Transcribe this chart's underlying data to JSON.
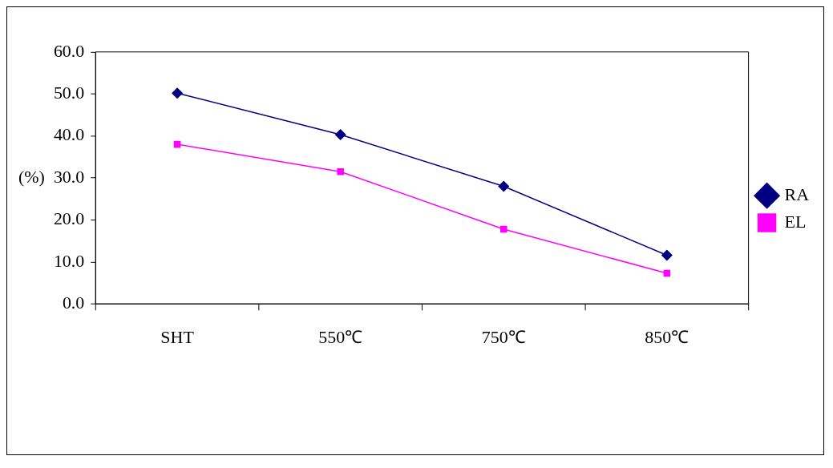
{
  "chart_data": {
    "type": "line",
    "ylabel": "(%)",
    "categories": [
      "SHT",
      "550℃",
      "750℃",
      "850℃"
    ],
    "series": [
      {
        "name": "RA",
        "color": "#000080",
        "values": [
          50.2,
          40.3,
          28.0,
          11.6
        ],
        "marker": "diamond"
      },
      {
        "name": "EL",
        "color": "#ff00ff",
        "values": [
          38.0,
          31.5,
          17.8,
          7.3
        ],
        "marker": "square"
      }
    ],
    "ylim": [
      0,
      60
    ],
    "yticks": [
      {
        "value": 0,
        "label": "0.0"
      },
      {
        "value": 10,
        "label": "10.0"
      },
      {
        "value": 20,
        "label": "20.0"
      },
      {
        "value": 30,
        "label": "30.0"
      },
      {
        "value": 40,
        "label": "40.0"
      },
      {
        "value": 50,
        "label": "50.0"
      },
      {
        "value": 60,
        "label": "60.0"
      }
    ],
    "grid": false,
    "legend": "right",
    "line_style": "solid"
  }
}
